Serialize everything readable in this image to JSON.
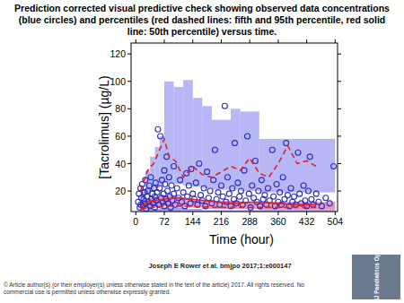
{
  "chart_data": {
    "type": "scatter",
    "title": "Prediction corrected visual predictive check showing observed data concentrations (blue circles) and percentiles (red dashed lines: fifth and 95th percentile, red solid line: 50th percentile) versus time.",
    "x_label": "Time (hour)",
    "y_label": "[Tacrolimus] (µg/L)",
    "xlim": [
      -12,
      510
    ],
    "ylim": [
      5,
      128
    ],
    "xticks": [
      0,
      72,
      144,
      216,
      288,
      360,
      432,
      504
    ],
    "yticks": [
      20,
      40,
      60,
      80,
      100,
      120
    ],
    "grid": false,
    "series": [
      {
        "type": "band",
        "color": "#a9aaf2",
        "bins": [
          12,
          24,
          36,
          48,
          60,
          72,
          96,
          120,
          144,
          168,
          192,
          240,
          264,
          312,
          360,
          504
        ],
        "lower": [
          14,
          18,
          20,
          22,
          24,
          26,
          25,
          24,
          23,
          22,
          21,
          21,
          20,
          19,
          19
        ],
        "upper": [
          22,
          35,
          45,
          52,
          60,
          100,
          96,
          101,
          88,
          82,
          72,
          80,
          78,
          58,
          58
        ]
      },
      {
        "type": "band",
        "color": "#8f92ea",
        "bins": [
          12,
          24,
          36,
          48,
          60,
          72,
          96,
          120,
          144,
          168,
          192,
          240,
          264,
          312,
          360,
          504
        ],
        "lower": [
          2,
          2,
          2,
          2,
          3,
          3,
          3,
          3,
          3,
          3,
          2,
          2,
          2,
          2,
          2
        ],
        "upper": [
          6,
          7,
          7,
          7,
          8,
          8,
          8,
          7,
          7,
          6,
          6,
          6,
          6,
          6,
          6
        ]
      },
      {
        "type": "band",
        "color": "#d98ab8",
        "bins": [
          12,
          24,
          36,
          48,
          60,
          72,
          96,
          120,
          144,
          168,
          192,
          240,
          264,
          312,
          360,
          504
        ],
        "lower": [
          6,
          7,
          8,
          8,
          9,
          9,
          9,
          8,
          8,
          7,
          7,
          7,
          7,
          6,
          6
        ],
        "upper": [
          12,
          14,
          15,
          16,
          17,
          17,
          16,
          15,
          14,
          13,
          13,
          13,
          12,
          12,
          12
        ]
      },
      {
        "type": "scatter",
        "color": "#2b2bbd",
        "marker": "circle",
        "x": [
          6,
          8,
          10,
          12,
          12,
          14,
          16,
          18,
          20,
          22,
          24,
          24,
          26,
          28,
          30,
          32,
          34,
          36,
          38,
          40,
          42,
          44,
          46,
          48,
          48,
          50,
          52,
          54,
          56,
          58,
          60,
          62,
          64,
          66,
          68,
          70,
          72,
          72,
          74,
          76,
          78,
          80,
          82,
          84,
          86,
          88,
          90,
          92,
          96,
          96,
          100,
          104,
          108,
          112,
          116,
          120,
          124,
          128,
          130,
          134,
          138,
          140,
          144,
          148,
          152,
          156,
          160,
          164,
          168,
          172,
          176,
          180,
          184,
          188,
          192,
          196,
          200,
          204,
          208,
          212,
          216,
          220,
          225,
          228,
          232,
          236,
          240,
          244,
          248,
          250,
          254,
          258,
          262,
          266,
          270,
          274,
          278,
          282,
          286,
          290,
          294,
          298,
          302,
          306,
          310,
          314,
          318,
          322,
          326,
          330,
          334,
          338,
          345,
          348,
          352,
          356,
          360,
          364,
          368,
          372,
          376,
          380,
          384,
          388,
          392,
          396,
          400,
          404,
          410,
          414,
          418,
          424,
          428,
          432,
          436,
          440,
          444,
          448,
          456,
          462,
          470,
          480,
          490,
          500
        ],
        "values": [
          12,
          18,
          8,
          22,
          10,
          15,
          25,
          9,
          14,
          19,
          28,
          11,
          7,
          16,
          20,
          12,
          24,
          9,
          30,
          14,
          18,
          11,
          22,
          16,
          8,
          26,
          13,
          19,
          65,
          10,
          22,
          60,
          15,
          28,
          12,
          18,
          35,
          9,
          25,
          14,
          45,
          20,
          11,
          30,
          16,
          8,
          24,
          13,
          38,
          18,
          10,
          22,
          15,
          28,
          12,
          19,
          9,
          33,
          16,
          24,
          11,
          36,
          18,
          14,
          26,
          10,
          40,
          17,
          13,
          22,
          9,
          34,
          15,
          20,
          11,
          28,
          50,
          14,
          19,
          10,
          24,
          16,
          82,
          12,
          30,
          18,
          9,
          22,
          14,
          55,
          11,
          26,
          16,
          20,
          10,
          35,
          13,
          60,
          18,
          8,
          24,
          15,
          42,
          12,
          20,
          9,
          28,
          14,
          17,
          10,
          22,
          13,
          50,
          16,
          9,
          25,
          12,
          19,
          10,
          30,
          14,
          55,
          17,
          9,
          22,
          12,
          16,
          10,
          48,
          18,
          11,
          24,
          13,
          9,
          20,
          45,
          14,
          10,
          18,
          12,
          9,
          15,
          11,
          38
        ]
      },
      {
        "type": "line",
        "color": "#e0202a",
        "line_style": "dashed",
        "x": [
          12,
          30,
          45,
          72,
          84,
          100,
          120,
          144,
          168,
          192,
          216,
          240,
          264,
          288,
          312,
          336,
          360,
          384,
          408,
          432,
          456
        ],
        "values": [
          20,
          35,
          40,
          58,
          45,
          42,
          30,
          38,
          32,
          30,
          34,
          38,
          35,
          44,
          33,
          30,
          40,
          53,
          40,
          42,
          38
        ]
      },
      {
        "type": "line",
        "color": "#e0202a",
        "line_style": "solid",
        "x": [
          12,
          30,
          50,
          72,
          100,
          144,
          200,
          250,
          300,
          360,
          400,
          456
        ],
        "values": [
          8,
          12,
          13,
          14,
          15,
          14,
          12,
          11,
          12,
          11,
          10,
          10
        ]
      },
      {
        "type": "line",
        "color": "#e0202a",
        "line_style": "dashed",
        "x": [
          12,
          40,
          72,
          120,
          200,
          300,
          400,
          456
        ],
        "values": [
          7,
          8,
          9,
          9,
          8,
          8,
          8,
          8
        ]
      }
    ]
  },
  "citation": "Joseph E Rower et al. bmjpo 2017;1:e000147",
  "copyright": "© Article author(s) (or their employer(s) unless otherwise stated in the text of the article) 2017. All rights reserved. No commercial use is permitted unless otherwise expressly granted.",
  "logo": "BMJ Paediatrics Open"
}
